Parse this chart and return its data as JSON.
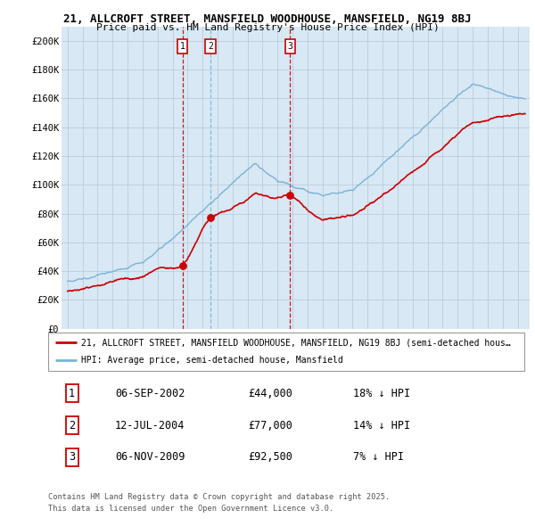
{
  "title1": "21, ALLCROFT STREET, MANSFIELD WOODHOUSE, MANSFIELD, NG19 8BJ",
  "title2": "Price paid vs. HM Land Registry's House Price Index (HPI)",
  "yticks": [
    0,
    20000,
    40000,
    60000,
    80000,
    100000,
    120000,
    140000,
    160000,
    180000,
    200000
  ],
  "ytick_labels": [
    "£0",
    "£20K",
    "£40K",
    "£60K",
    "£80K",
    "£100K",
    "£120K",
    "£140K",
    "£160K",
    "£180K",
    "£200K"
  ],
  "ylim": [
    0,
    210000
  ],
  "hpi_color": "#7ab4d8",
  "price_color": "#cc0000",
  "marker_color_red": "#cc0000",
  "marker_color_blue": "#7ab4d8",
  "background_color": "#ddeeff",
  "chart_bg": "#d8e8f4",
  "grid_color": "#bbccdd",
  "transactions": [
    {
      "label": "1",
      "date_str": "06-SEP-2002",
      "year": 2002.67,
      "price": 44000,
      "pct": "18% ↓ HPI",
      "vline_color": "#cc0000"
    },
    {
      "label": "2",
      "date_str": "12-JUL-2004",
      "year": 2004.53,
      "price": 77000,
      "pct": "14% ↓ HPI",
      "vline_color": "#7ab4d8"
    },
    {
      "label": "3",
      "date_str": "06-NOV-2009",
      "year": 2009.84,
      "price": 92500,
      "pct": "7% ↓ HPI",
      "vline_color": "#cc0000"
    }
  ],
  "legend_label1": "21, ALLCROFT STREET, MANSFIELD WOODHOUSE, MANSFIELD, NG19 8BJ (semi-detached hous…",
  "legend_label2": "HPI: Average price, semi-detached house, Mansfield",
  "footer1": "Contains HM Land Registry data © Crown copyright and database right 2025.",
  "footer2": "This data is licensed under the Open Government Licence v3.0.",
  "start_year": 1995,
  "end_year": 2025
}
